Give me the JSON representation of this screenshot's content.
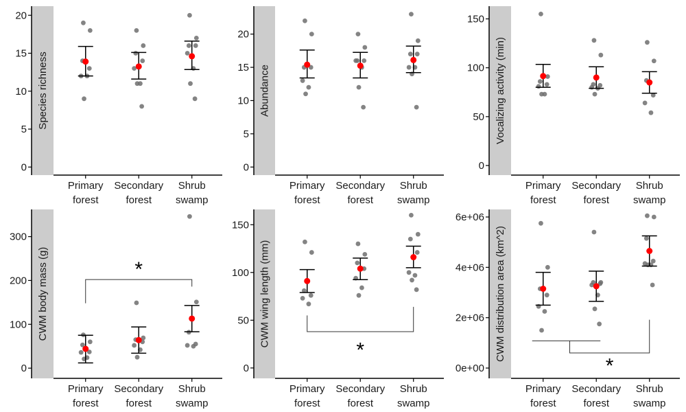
{
  "colors": {
    "point": "#6e6e6e",
    "mean": "#ff0000",
    "errorbar": "#000000",
    "strip": "#cccccc",
    "axis": "#000000",
    "bracket": "#333333"
  },
  "chart_data": [
    {
      "type": "scatter",
      "id": "species-richness",
      "ylabel": "Species richness",
      "categories": [
        "Primary\nforest",
        "Secondary\nforest",
        "Shrub\nswamp"
      ],
      "ylim": [
        -0.7,
        21.2
      ],
      "yticks": [
        0,
        5,
        10,
        15,
        20
      ],
      "ytick_labels": [
        "0",
        "5",
        "10",
        "15",
        "20"
      ],
      "groups": [
        {
          "points": [
            19,
            18,
            14,
            13,
            12,
            12,
            9
          ],
          "mean": 13.9,
          "lower": 12.0,
          "upper": 15.9
        },
        {
          "points": [
            18,
            16,
            15,
            14,
            13,
            11,
            11,
            8
          ],
          "mean": 13.25,
          "lower": 11.6,
          "upper": 15.1
        },
        {
          "points": [
            20,
            17,
            16,
            16,
            15,
            13,
            11,
            9
          ],
          "mean": 14.6,
          "lower": 12.85,
          "upper": 16.6
        }
      ],
      "significance": []
    },
    {
      "type": "scatter",
      "id": "abundance",
      "ylabel": "Abundance",
      "categories": [
        "Primary\nforest",
        "Secondary\nforest",
        "Shrub\nswamp"
      ],
      "ylim": [
        -0.8,
        24.2
      ],
      "yticks": [
        0,
        5,
        10,
        15,
        20
      ],
      "ytick_labels": [
        "0",
        "5",
        "10",
        "15",
        "20"
      ],
      "groups": [
        {
          "points": [
            22,
            20,
            15,
            15,
            13,
            12,
            11
          ],
          "mean": 15.4,
          "lower": 13.4,
          "upper": 17.6
        },
        {
          "points": [
            20,
            18,
            16,
            16,
            16,
            15,
            12,
            9
          ],
          "mean": 15.25,
          "lower": 13.4,
          "upper": 17.25
        },
        {
          "points": [
            23,
            19,
            17,
            17,
            15,
            15,
            14,
            9
          ],
          "mean": 16.1,
          "lower": 14.2,
          "upper": 18.2
        }
      ],
      "significance": []
    },
    {
      "type": "scatter",
      "id": "vocalizing-activity",
      "ylabel": "Vocalizing activity (min)",
      "categories": [
        "Primary\nforest",
        "Secondary\nforest",
        "Shrub\nswamp"
      ],
      "ylim": [
        -7,
        163
      ],
      "yticks": [
        0,
        50,
        100,
        150
      ],
      "ytick_labels": [
        "0",
        "50",
        "100",
        "150"
      ],
      "groups": [
        {
          "points": [
            155,
            91,
            86,
            83,
            81,
            73,
            73
          ],
          "mean": 91.5,
          "lower": 80,
          "upper": 103.5
        },
        {
          "points": [
            128,
            113,
            83,
            82,
            80,
            79,
            73
          ],
          "mean": 90,
          "lower": 79,
          "upper": 101
        },
        {
          "points": [
            126,
            107,
            87,
            72,
            64,
            54
          ],
          "mean": 85,
          "lower": 74,
          "upper": 96
        }
      ],
      "significance": []
    },
    {
      "type": "scatter",
      "id": "cwm-body-mass",
      "ylabel": "CWM body mass (g)",
      "categories": [
        "Primary\nforest",
        "Secondary\nforest",
        "Shrub\nswamp"
      ],
      "ylim": [
        -17,
        362
      ],
      "yticks": [
        0,
        100,
        200,
        300
      ],
      "ytick_labels": [
        "0",
        "100",
        "200",
        "300"
      ],
      "groups": [
        {
          "points": [
            76,
            60,
            53,
            37,
            36,
            24,
            21
          ],
          "mean": 44,
          "lower": 12,
          "upper": 75
        },
        {
          "points": [
            149,
            69,
            65,
            60,
            52,
            42,
            25
          ],
          "mean": 64,
          "lower": 34,
          "upper": 94
        },
        {
          "points": [
            346,
            151,
            82,
            55,
            52,
            50
          ],
          "mean": 113,
          "lower": 83,
          "upper": 143
        }
      ],
      "significance": [
        {
          "from": 0,
          "to": 2,
          "y": 202,
          "from_end": 148,
          "to_end": 186,
          "label": "*",
          "label_y": 232
        }
      ]
    },
    {
      "type": "scatter",
      "id": "cwm-wing-length",
      "ylabel": "CWM wing length (mm)",
      "categories": [
        "Primary\nforest",
        "Secondary\nforest",
        "Shrub\nswamp"
      ],
      "ylim": [
        -8,
        166
      ],
      "yticks": [
        0,
        50,
        100,
        150
      ],
      "ytick_labels": [
        "0",
        "50",
        "100",
        "150"
      ],
      "groups": [
        {
          "points": [
            132,
            121,
            81,
            76,
            73,
            67
          ],
          "mean": 91,
          "lower": 79,
          "upper": 103
        },
        {
          "points": [
            130,
            119,
            110,
            104,
            94,
            84,
            76
          ],
          "mean": 104,
          "lower": 92.5,
          "upper": 115
        },
        {
          "points": [
            160,
            140,
            135,
            121,
            100,
            97,
            92,
            82
          ],
          "mean": 116,
          "lower": 105,
          "upper": 127.5
        }
      ],
      "significance": [
        {
          "from": 0,
          "to": 2,
          "y": 38,
          "from_end": 55,
          "to_end": 64,
          "label": "*",
          "label_y": 22
        }
      ]
    },
    {
      "type": "scatter",
      "id": "cwm-distribution-area",
      "ylabel": "CWM distribution area (km^2)",
      "categories": [
        "Primary\nforest",
        "Secondary\nforest",
        "Shrub\nswamp"
      ],
      "ylim": [
        -300000,
        6300000
      ],
      "yticks": [
        0,
        2000000,
        4000000,
        6000000
      ],
      "ytick_labels": [
        "0e+00",
        "2e+06",
        "4e+06",
        "6e+06"
      ],
      "groups": [
        {
          "points": [
            5750000,
            4000000,
            3150000,
            2900000,
            2450000,
            2250000,
            1500000
          ],
          "mean": 3150000,
          "lower": 2500000,
          "upper": 3800000
        },
        {
          "points": [
            5400000,
            3400000,
            3400000,
            3350000,
            3300000,
            2900000,
            2350000,
            1750000
          ],
          "mean": 3250000,
          "lower": 2650000,
          "upper": 3850000
        },
        {
          "points": [
            6050000,
            6000000,
            5150000,
            4250000,
            4150000,
            4100000,
            4100000,
            3300000
          ],
          "mean": 4650000,
          "lower": 4050000,
          "upper": 5250000
        }
      ],
      "significance": [
        {
          "from": 0,
          "to": 1,
          "y": 1080000,
          "type": "group-bracket"
        },
        {
          "from": 0.5,
          "to": 2,
          "y": 600000,
          "from_end": 1080000,
          "to_end": 1920000,
          "label": "*",
          "label_y": 200000
        }
      ]
    }
  ]
}
